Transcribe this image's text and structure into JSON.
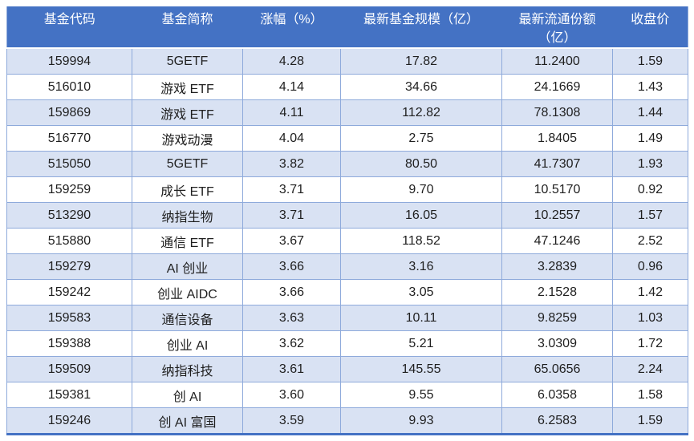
{
  "chart_data": {
    "type": "table",
    "columns": [
      "基金代码",
      "基金简称",
      "涨幅（%）",
      "最新基金规模（亿）",
      "最新流通份额（亿）",
      "收盘价"
    ],
    "rows": [
      [
        "159994",
        "5GETF",
        "4.28",
        "17.82",
        "11.2400",
        "1.59"
      ],
      [
        "516010",
        "游戏 ETF",
        "4.14",
        "34.66",
        "24.1669",
        "1.43"
      ],
      [
        "159869",
        "游戏 ETF",
        "4.11",
        "112.82",
        "78.1308",
        "1.44"
      ],
      [
        "516770",
        "游戏动漫",
        "4.04",
        "2.75",
        "1.8405",
        "1.49"
      ],
      [
        "515050",
        "5GETF",
        "3.82",
        "80.50",
        "41.7307",
        "1.93"
      ],
      [
        "159259",
        "成长 ETF",
        "3.71",
        "9.70",
        "10.5170",
        "0.92"
      ],
      [
        "513290",
        "纳指生物",
        "3.71",
        "16.05",
        "10.2557",
        "1.57"
      ],
      [
        "515880",
        "通信 ETF",
        "3.67",
        "118.52",
        "47.1246",
        "2.52"
      ],
      [
        "159279",
        "AI 创业",
        "3.66",
        "3.16",
        "3.2839",
        "0.96"
      ],
      [
        "159242",
        "创业 AIDC",
        "3.66",
        "3.05",
        "2.1528",
        "1.42"
      ],
      [
        "159583",
        "通信设备",
        "3.63",
        "10.11",
        "9.8259",
        "1.03"
      ],
      [
        "159388",
        "创业 AI",
        "3.62",
        "5.21",
        "3.0309",
        "1.72"
      ],
      [
        "159509",
        "纳指科技",
        "3.61",
        "145.55",
        "65.0656",
        "2.24"
      ],
      [
        "159381",
        "创 AI",
        "3.60",
        "9.55",
        "6.0358",
        "1.58"
      ],
      [
        "159246",
        "创 AI 富国",
        "3.59",
        "9.93",
        "6.2583",
        "1.59"
      ]
    ],
    "layout": {
      "banded_rows": true,
      "first_banded_row_index": 0
    }
  },
  "colors": {
    "header_bg": "#4472C4",
    "header_text": "#FFFFFF",
    "band_row_bg": "#D9E2F3",
    "grid_border": "#8EAADB",
    "outer_bottom_border": "#4472C4",
    "body_text": "#1F1F1F"
  }
}
